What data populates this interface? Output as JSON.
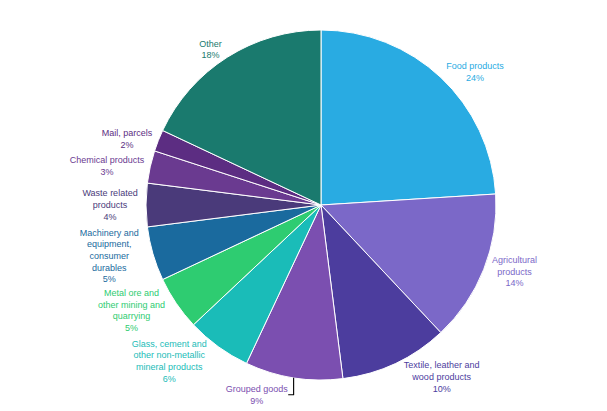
{
  "chart_data": {
    "type": "pie",
    "categories": [
      "Food products",
      "Agricultural\nproducts",
      "Textile, leather and\nwood products",
      "Grouped goods",
      "Glass, cement and\nother non-metallic\nmineral products",
      "Metal ore and\nother mining and\nquarrying",
      "Machinery and\nequipment,\nconsumer\ndurables",
      "Waste related\nproducts",
      "Chemical products",
      "Mail, parcels",
      "Other"
    ],
    "values": [
      24,
      14,
      10,
      9,
      6,
      5,
      5,
      4,
      3,
      2,
      18
    ],
    "value_labels": [
      "24%",
      "14%",
      "10%",
      "9%",
      "6%",
      "5%",
      "5%",
      "4%",
      "3%",
      "2%",
      "18%"
    ],
    "colors": [
      "#29ABE2",
      "#7B68C8",
      "#4C3D9E",
      "#7B4FB0",
      "#1ABCB8",
      "#2ECC71",
      "#1A6A9E",
      "#4A3A7A",
      "#6A3A90",
      "#5C2D82",
      "#1A7A6E"
    ],
    "data_labels": true
  }
}
